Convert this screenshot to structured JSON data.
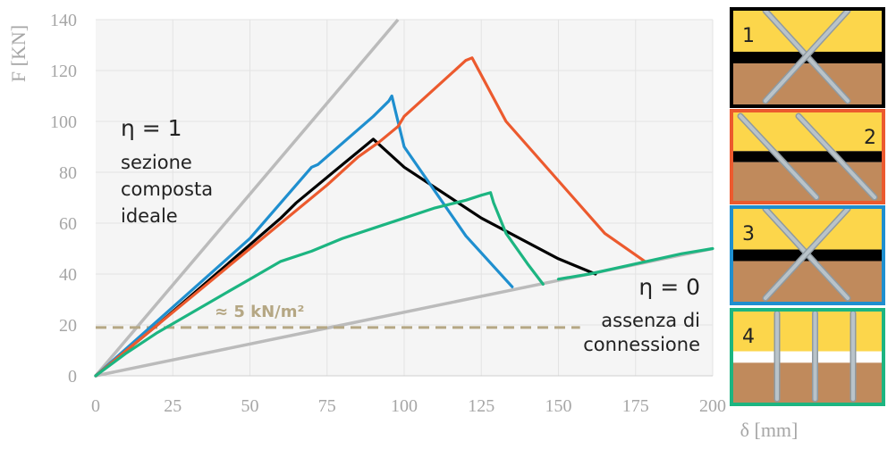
{
  "chart_data": {
    "type": "line",
    "xlabel": "δ [mm]",
    "ylabel": "F [KN]",
    "xlim": [
      0,
      200
    ],
    "ylim": [
      0,
      140
    ],
    "xticks": [
      0,
      25,
      50,
      75,
      100,
      125,
      150,
      175,
      200
    ],
    "yticks": [
      0,
      20,
      40,
      60,
      80,
      100,
      120,
      140
    ],
    "grid": true,
    "series": [
      {
        "color": "#000000",
        "x": [
          0,
          20,
          40,
          60,
          65,
          80,
          88,
          90,
          100,
          125,
          150,
          162
        ],
        "y": [
          0,
          20,
          41,
          62,
          68,
          83,
          91,
          93,
          82,
          62,
          46,
          40
        ]
      },
      {
        "color": "#1f8fcf",
        "x": [
          0,
          25,
          50,
          70,
          72,
          90,
          95,
          96,
          97,
          100,
          120,
          135
        ],
        "y": [
          0,
          27,
          54,
          82,
          83,
          102,
          108,
          110,
          105,
          90,
          55,
          35
        ]
      },
      {
        "color": "#ec5a2e",
        "x": [
          0,
          25,
          50,
          75,
          85,
          92,
          98,
          100,
          120,
          122,
          133,
          165,
          178
        ],
        "y": [
          0,
          25,
          50,
          75,
          86,
          92,
          98,
          102,
          124,
          125,
          100,
          56,
          45
        ]
      },
      {
        "color": "#1cb581",
        "x": [
          0,
          10,
          20,
          30,
          40,
          50,
          60,
          70,
          80,
          90,
          100,
          110,
          120,
          125,
          128,
          129,
          133,
          140,
          145
        ],
        "y": [
          0,
          9,
          17,
          24,
          31,
          38,
          45,
          49,
          54,
          58,
          62,
          66,
          69,
          71,
          72,
          68,
          56,
          44,
          36
        ]
      },
      {
        "color": "#1cb581",
        "x": [
          150,
          160,
          175,
          190,
          200
        ],
        "y": [
          38,
          40,
          44,
          48,
          50
        ]
      }
    ],
    "reference_lines": [
      {
        "name": "η = 1",
        "color": "#bbbbbb",
        "x": [
          0,
          98
        ],
        "y": [
          0,
          140
        ]
      },
      {
        "name": "η = 0",
        "color": "#bbbbbb",
        "x": [
          0,
          200
        ],
        "y": [
          0,
          50
        ]
      },
      {
        "name": "≈ 5 kN/m²",
        "color": "#b5a784",
        "dashed": true,
        "x": [
          0,
          157
        ],
        "y": [
          19,
          19
        ]
      }
    ]
  },
  "annotations": {
    "eta1_title": "η = 1",
    "eta1_line1": "sezione",
    "eta1_line2": "composta",
    "eta1_line3": "ideale",
    "eta0_title": "η = 0",
    "eta0_line1": "assenza di",
    "eta0_line2": "connessione",
    "dashed_label": "≈ 5 kN/m²"
  },
  "panels": [
    {
      "number": "1",
      "border": "#000000"
    },
    {
      "number": "2",
      "border": "#ec5a2e"
    },
    {
      "number": "3",
      "border": "#1f8fcf"
    },
    {
      "number": "4",
      "border": "#1cb581"
    }
  ],
  "colors": {
    "wood_top": "#fcd64b",
    "wood_bottom": "#c08a5c",
    "screw": "#b9c3c9"
  }
}
